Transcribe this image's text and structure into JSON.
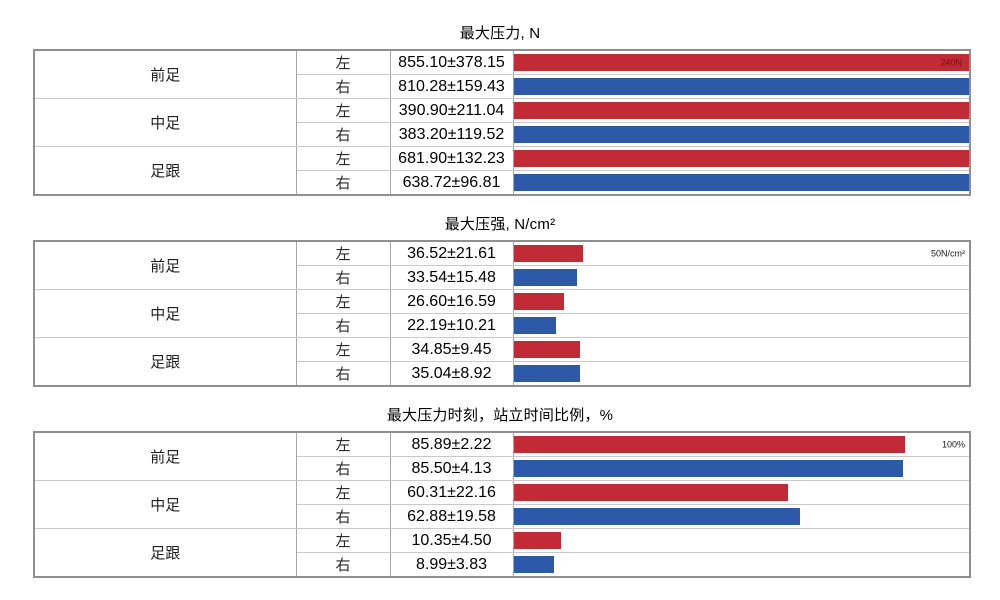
{
  "colors": {
    "left_bar": "#c02b36",
    "right_bar": "#2d5aa8",
    "scale_label_on_bar": "#6e1018",
    "scale_label_plain": "#1a1a1a",
    "outer_border": "#8f8f8f",
    "column_line": "#a6a6a6",
    "row_line": "#c9c9c9"
  },
  "side_series": {
    "left_label": "左",
    "right_label": "右"
  },
  "chart_data": [
    {
      "type": "bar",
      "orientation": "horizontal",
      "title": "最大压力, N",
      "unit": "N",
      "scale_label": "240N",
      "scale_label_inside_bar": true,
      "bar_render_scale": 240,
      "categories": [
        "前足",
        "中足",
        "足跟"
      ],
      "legend": [
        "左",
        "右"
      ],
      "rows": [
        {
          "region": "前足",
          "side": "左",
          "mean": 855.1,
          "std": 378.15,
          "display": "855.10±378.15"
        },
        {
          "region": "前足",
          "side": "右",
          "mean": 810.28,
          "std": 159.43,
          "display": "810.28±159.43"
        },
        {
          "region": "中足",
          "side": "左",
          "mean": 390.9,
          "std": 211.04,
          "display": "390.90±211.04"
        },
        {
          "region": "中足",
          "side": "右",
          "mean": 383.2,
          "std": 119.52,
          "display": "383.20±119.52"
        },
        {
          "region": "足跟",
          "side": "左",
          "mean": 681.9,
          "std": 132.23,
          "display": "681.90±132.23"
        },
        {
          "region": "足跟",
          "side": "右",
          "mean": 638.72,
          "std": 96.81,
          "display": "638.72±96.81"
        }
      ]
    },
    {
      "type": "bar",
      "orientation": "horizontal",
      "title": "最大压强, N/cm²",
      "unit": "N/cm²",
      "scale_label": "50N/cm²",
      "scale_label_inside_bar": false,
      "bar_render_scale": 240,
      "categories": [
        "前足",
        "中足",
        "足跟"
      ],
      "legend": [
        "左",
        "右"
      ],
      "rows": [
        {
          "region": "前足",
          "side": "左",
          "mean": 36.52,
          "std": 21.61,
          "display": "36.52±21.61"
        },
        {
          "region": "前足",
          "side": "右",
          "mean": 33.54,
          "std": 15.48,
          "display": "33.54±15.48"
        },
        {
          "region": "中足",
          "side": "左",
          "mean": 26.6,
          "std": 16.59,
          "display": "26.60±16.59"
        },
        {
          "region": "中足",
          "side": "右",
          "mean": 22.19,
          "std": 10.21,
          "display": "22.19±10.21"
        },
        {
          "region": "足跟",
          "side": "左",
          "mean": 34.85,
          "std": 9.45,
          "display": "34.85±9.45"
        },
        {
          "region": "足跟",
          "side": "右",
          "mean": 35.04,
          "std": 8.92,
          "display": "35.04±8.92"
        }
      ]
    },
    {
      "type": "bar",
      "orientation": "horizontal",
      "title": "最大压力时刻，站立时间比例，%",
      "unit": "%",
      "scale_label": "100%",
      "scale_label_inside_bar": false,
      "bar_render_scale": 100,
      "categories": [
        "前足",
        "中足",
        "足跟"
      ],
      "legend": [
        "左",
        "右"
      ],
      "rows": [
        {
          "region": "前足",
          "side": "左",
          "mean": 85.89,
          "std": 2.22,
          "display": "85.89±2.22"
        },
        {
          "region": "前足",
          "side": "右",
          "mean": 85.5,
          "std": 4.13,
          "display": "85.50±4.13"
        },
        {
          "region": "中足",
          "side": "左",
          "mean": 60.31,
          "std": 22.16,
          "display": "60.31±22.16"
        },
        {
          "region": "中足",
          "side": "右",
          "mean": 62.88,
          "std": 19.58,
          "display": "62.88±19.58"
        },
        {
          "region": "足跟",
          "side": "左",
          "mean": 10.35,
          "std": 4.5,
          "display": "10.35±4.50"
        },
        {
          "region": "足跟",
          "side": "右",
          "mean": 8.99,
          "std": 3.83,
          "display": "8.99±3.83"
        }
      ]
    }
  ]
}
